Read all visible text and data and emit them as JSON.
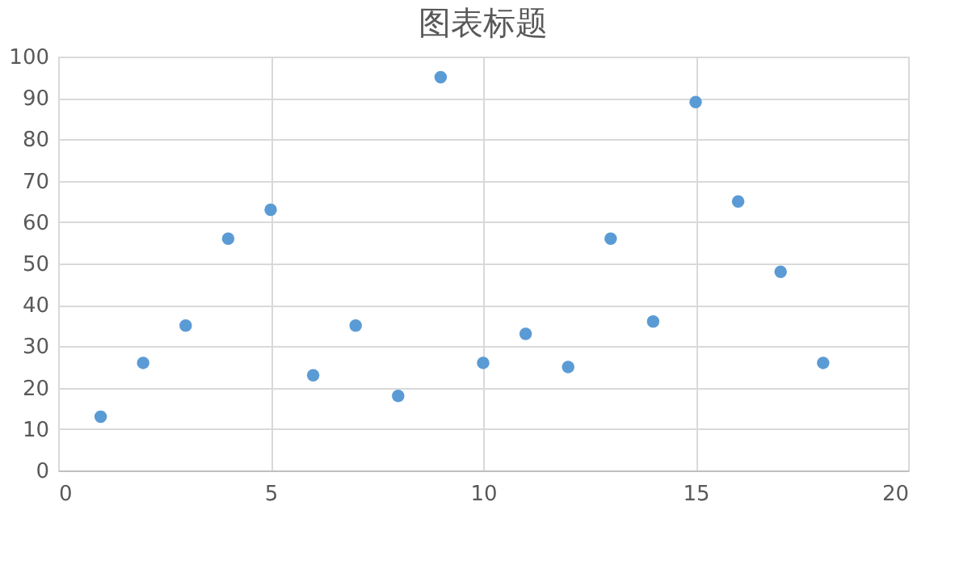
{
  "chart_data": {
    "type": "scatter",
    "title": "图表标题",
    "x": [
      1,
      2,
      3,
      4,
      5,
      6,
      7,
      8,
      9,
      10,
      11,
      12,
      13,
      14,
      15,
      16,
      17,
      18
    ],
    "series": [
      {
        "color": "#5b9bd5",
        "values": [
          13,
          26,
          35,
          56,
          63,
          23,
          35,
          18,
          95,
          26,
          33,
          25,
          56,
          36,
          89,
          65,
          48,
          26
        ]
      }
    ],
    "xlim": [
      0,
      20
    ],
    "xticks": [
      0,
      5,
      10,
      15,
      20
    ],
    "ylim": [
      0,
      100
    ],
    "yticks": [
      0,
      10,
      20,
      30,
      40,
      50,
      60,
      70,
      80,
      90,
      100
    ],
    "grid": true,
    "marker": "circle"
  }
}
